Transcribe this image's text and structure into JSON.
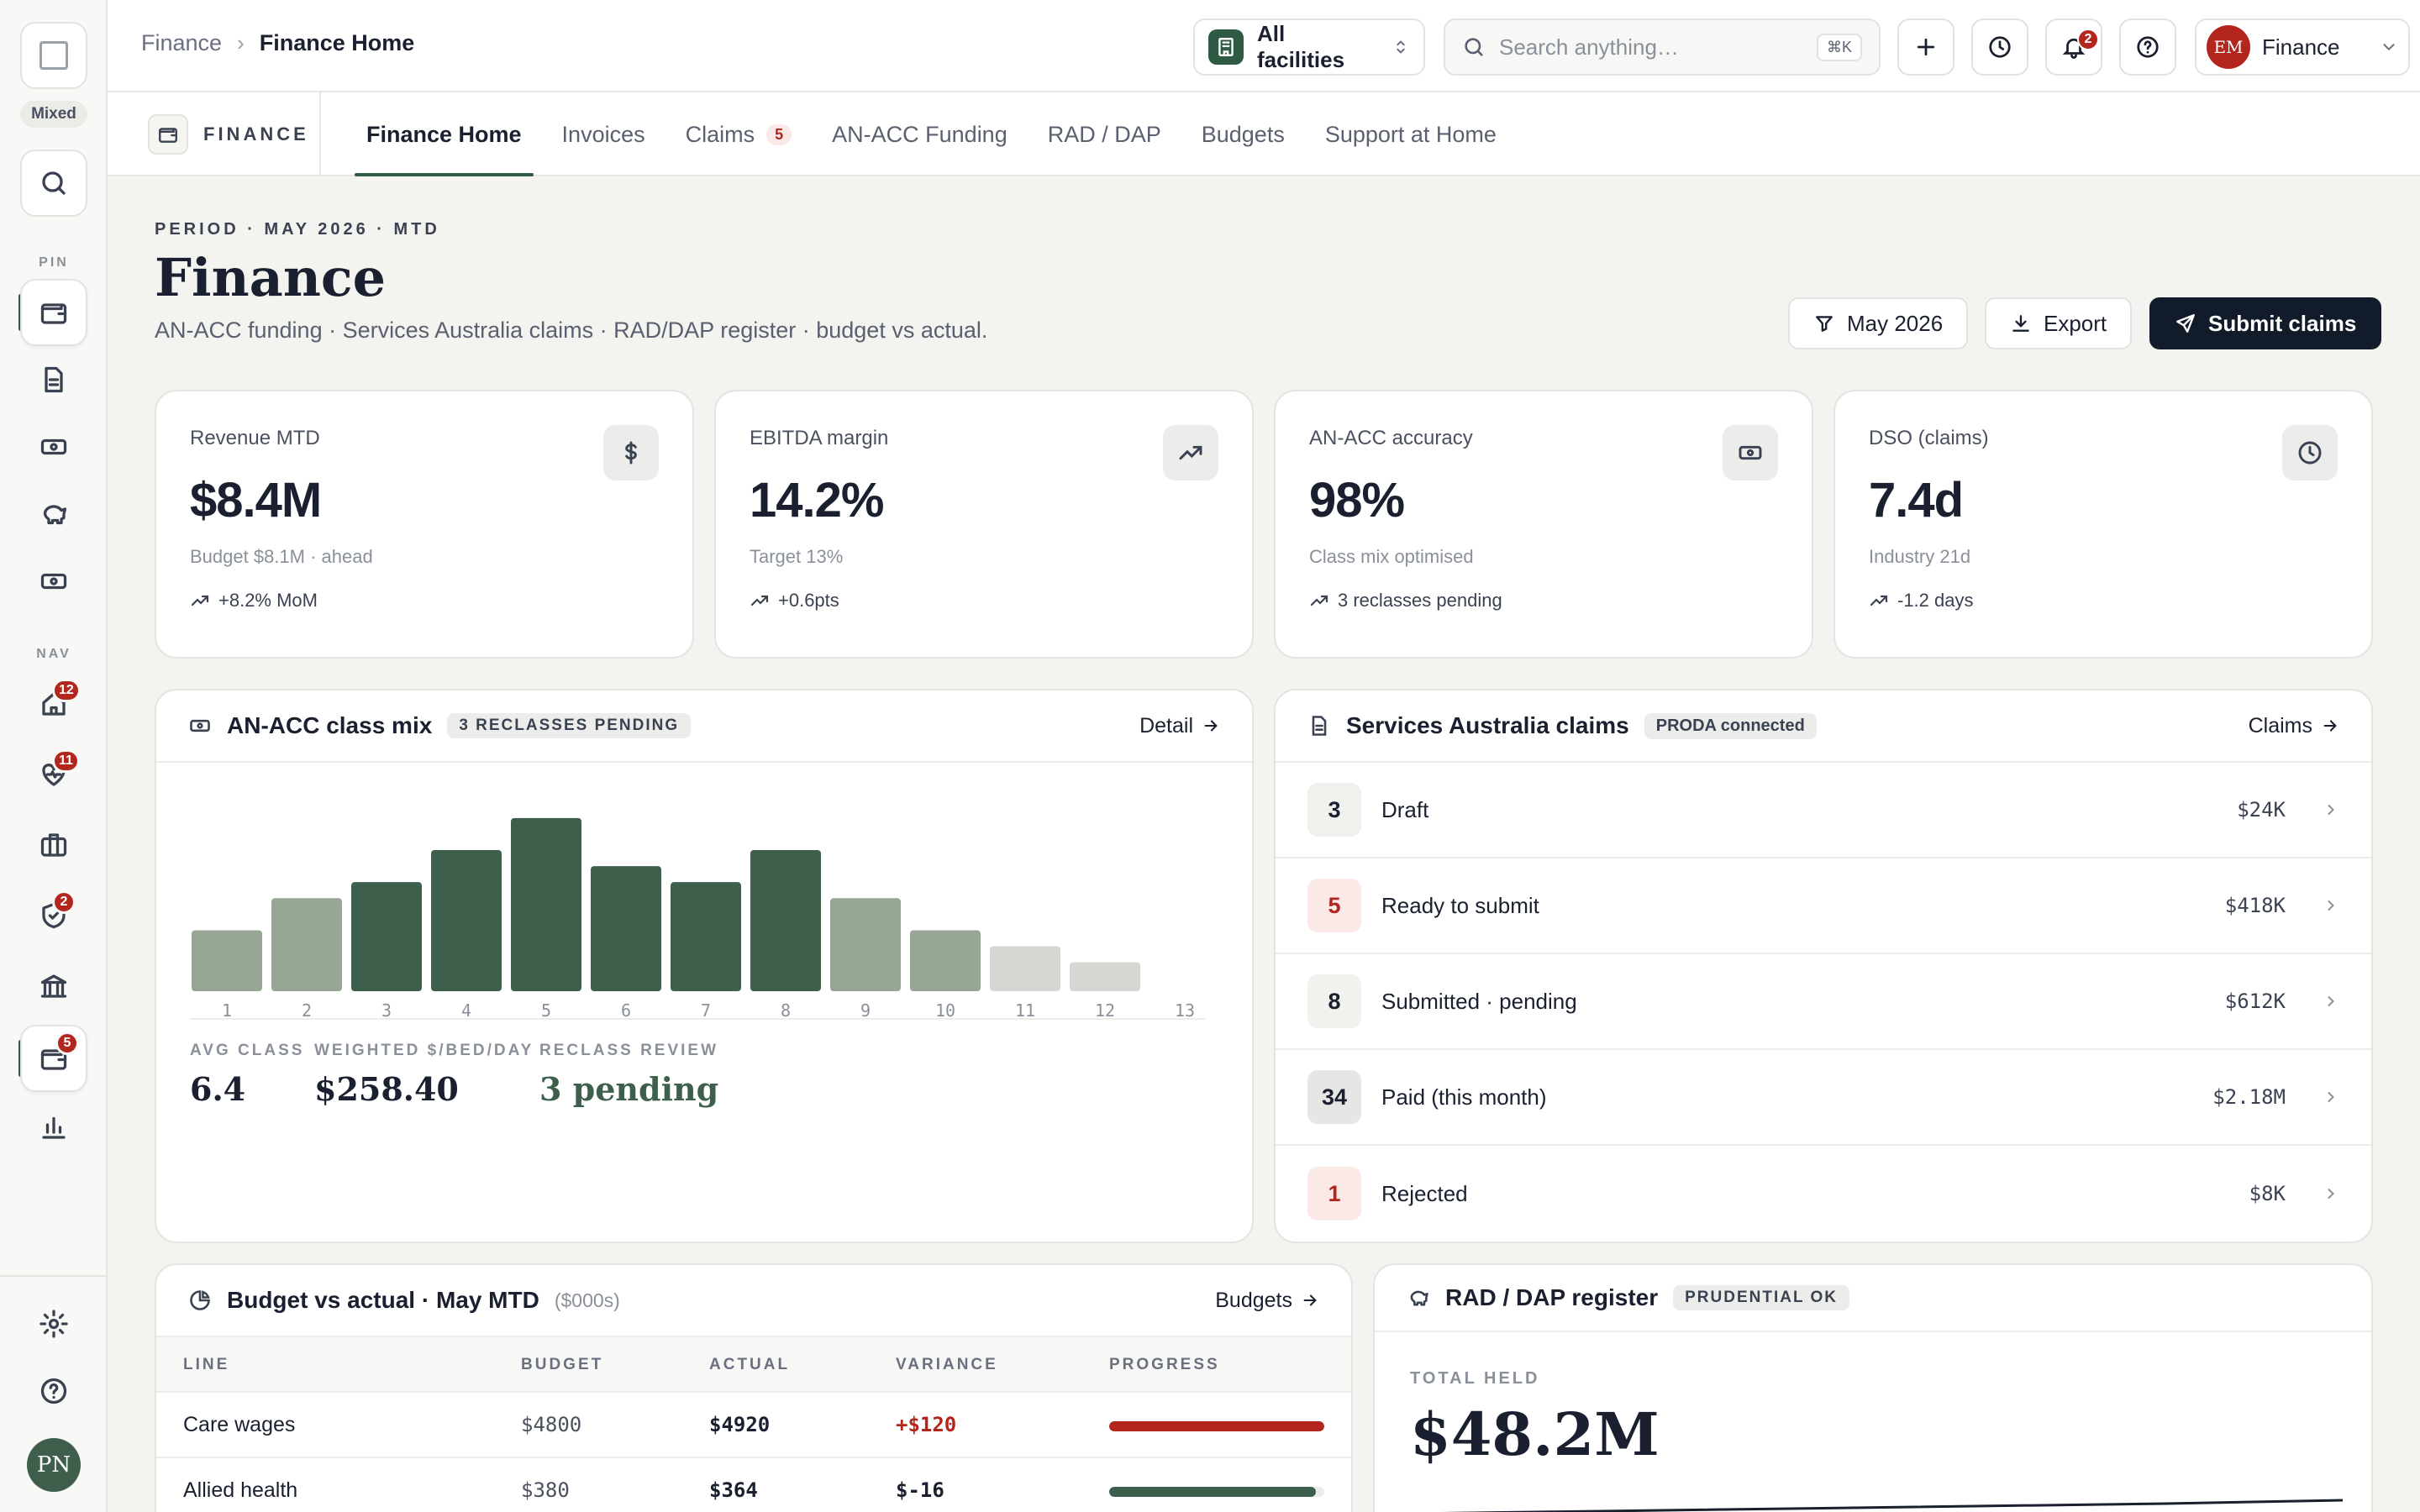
{
  "rail": {
    "mixed": "Mixed",
    "pin_label": "PIN",
    "nav_label": "NAV",
    "badges": {
      "home": "12",
      "care": "11",
      "compliance": "2",
      "finance": "5"
    },
    "avatar": "PN"
  },
  "topbar": {
    "breadcrumb": [
      "Finance",
      "Finance Home"
    ],
    "facility": "All facilities",
    "search_placeholder": "Search anything…",
    "search_shortcut": "⌘K",
    "notifications_count": "2",
    "user_initials": "EM",
    "user_name": "Finance"
  },
  "module": {
    "label": "FINANCE",
    "tabs": [
      {
        "label": "Finance Home",
        "active": true
      },
      {
        "label": "Invoices"
      },
      {
        "label": "Claims",
        "count": "5"
      },
      {
        "label": "AN-ACC Funding"
      },
      {
        "label": "RAD / DAP"
      },
      {
        "label": "Budgets"
      },
      {
        "label": "Support at Home"
      }
    ]
  },
  "page": {
    "period": "PERIOD · MAY 2026 · MTD",
    "title": "Finance",
    "subtitle": "AN-ACC funding · Services Australia claims · RAD/DAP register · budget vs actual.",
    "filter_label": "May 2026",
    "export_label": "Export",
    "submit_label": "Submit claims"
  },
  "kpis": [
    {
      "label": "Revenue MTD",
      "value": "$8.4M",
      "sub": "Budget $8.1M · ahead",
      "delta": "+8.2% MoM",
      "icon": "dollar-icon"
    },
    {
      "label": "EBITDA margin",
      "value": "14.2%",
      "sub": "Target 13%",
      "delta": "+0.6pts",
      "icon": "trending-up-icon"
    },
    {
      "label": "AN-ACC accuracy",
      "value": "98%",
      "sub": "Class mix optimised",
      "delta": "3 reclasses pending",
      "icon": "cash-icon"
    },
    {
      "label": "DSO (claims)",
      "value": "7.4d",
      "sub": "Industry 21d",
      "delta": "-1.2 days",
      "icon": "clock-icon"
    }
  ],
  "anacc": {
    "title": "AN-ACC class mix",
    "tag": "3 RECLASSES PENDING",
    "link": "Detail",
    "stats": [
      {
        "label": "AVG CLASS",
        "value": "6.4"
      },
      {
        "label": "WEIGHTED $/BED/DAY",
        "value": "$258.40"
      },
      {
        "label": "RECLASS REVIEW",
        "value": "3 pending"
      }
    ]
  },
  "chart_data": {
    "type": "bar",
    "categories": [
      "1",
      "2",
      "3",
      "4",
      "5",
      "6",
      "7",
      "8",
      "9",
      "10",
      "11",
      "12",
      "13"
    ],
    "values": [
      38,
      58,
      68,
      88,
      108,
      78,
      68,
      88,
      58,
      38,
      28,
      18,
      0
    ],
    "ylim": [
      0,
      110
    ],
    "colors": [
      "#98a696",
      "#98a696",
      "#3e5f4b",
      "#3e5f4b",
      "#3e5f4b",
      "#3e5f4b",
      "#3e5f4b",
      "#3e5f4b",
      "#98a696",
      "#98a696",
      "#d5d7d3",
      "#d5d7d3",
      "#d5d7d3"
    ],
    "grid": false,
    "legend": "none"
  },
  "claims": {
    "title": "Services Australia claims",
    "tag": "PRODA connected",
    "link": "Claims",
    "rows": [
      {
        "count": "3",
        "label": "Draft",
        "amount": "$24K"
      },
      {
        "count": "5",
        "label": "Ready to submit",
        "amount": "$418K"
      },
      {
        "count": "8",
        "label": "Submitted · pending",
        "amount": "$612K"
      },
      {
        "count": "34",
        "label": "Paid (this month)",
        "amount": "$2.18M"
      },
      {
        "count": "1",
        "label": "Rejected",
        "amount": "$8K"
      }
    ]
  },
  "budget": {
    "title": "Budget vs actual · May MTD",
    "unit": "($000s)",
    "link": "Budgets",
    "columns": [
      "LINE",
      "BUDGET",
      "ACTUAL",
      "VARIANCE",
      "PROGRESS"
    ],
    "rows": [
      {
        "line": "Care wages",
        "budget": "$4800",
        "actual": "$4920",
        "variance": "+$120",
        "progress": 1.0,
        "color": "#b3261e"
      },
      {
        "line": "Allied health",
        "budget": "$380",
        "actual": "$364",
        "variance": "$-16",
        "progress": 0.96,
        "color": "#3e5f4b"
      }
    ]
  },
  "rad": {
    "title": "RAD / DAP register",
    "tag": "PRUDENTIAL OK",
    "total_label": "TOTAL HELD",
    "total_value": "$48.2M"
  }
}
